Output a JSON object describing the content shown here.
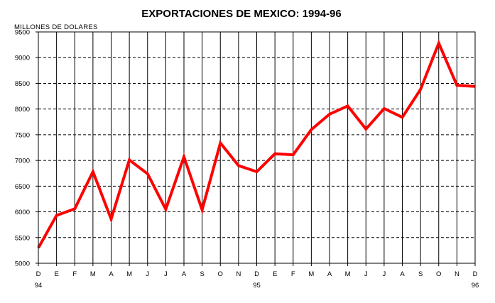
{
  "chart_data": {
    "type": "line",
    "title": "EXPORTACIONES DE MEXICO: 1994-96",
    "ylabel": "MILLONES DE DOLARES",
    "xlabel": "",
    "ylim": [
      5000,
      9500
    ],
    "yticks": [
      5000,
      5500,
      6000,
      6500,
      7000,
      7500,
      8000,
      8500,
      9000,
      9500
    ],
    "categories": [
      "D",
      "E",
      "F",
      "M",
      "A",
      "M",
      "J",
      "J",
      "A",
      "S",
      "O",
      "N",
      "D",
      "E",
      "F",
      "M",
      "A",
      "M",
      "J",
      "J",
      "A",
      "S",
      "O",
      "N",
      "D"
    ],
    "year_labels": [
      {
        "index": 0,
        "label": "94"
      },
      {
        "index": 12,
        "label": "95"
      },
      {
        "index": 24,
        "label": "96"
      }
    ],
    "grid": true,
    "legend": "none",
    "series": [
      {
        "color": "#ff0000",
        "values": [
          5300,
          5930,
          6060,
          6780,
          5860,
          7010,
          6740,
          6050,
          7070,
          6040,
          7340,
          6900,
          6780,
          7130,
          7110,
          7600,
          7900,
          8060,
          7610,
          8010,
          7840,
          8380,
          9280,
          8460,
          8440
        ]
      }
    ]
  }
}
